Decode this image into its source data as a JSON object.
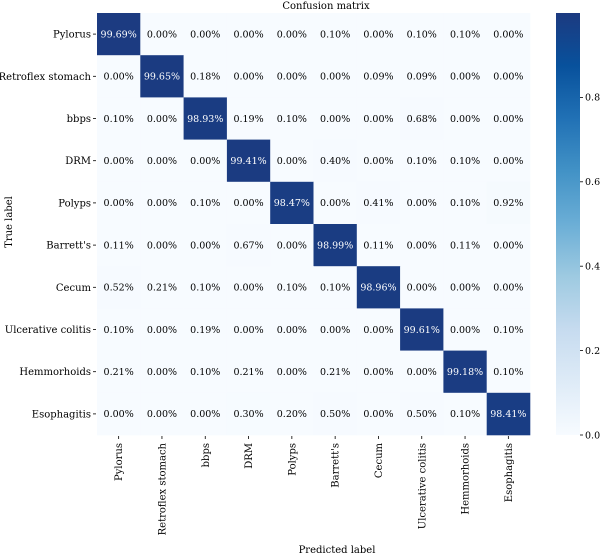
{
  "chart_data": {
    "type": "heatmap",
    "title": "Confusion matrix",
    "xlabel": "Predicted label",
    "ylabel": "True label",
    "row_labels": [
      "Pylorus",
      "Retroflex stomach",
      "bbps",
      "DRM",
      "Polyps",
      "Barrett's",
      "Cecum",
      "Ulcerative colitis",
      "Hemmorhoids",
      "Esophagitis"
    ],
    "col_labels": [
      "Pylorus",
      "Retroflex stomach",
      "bbps",
      "DRM",
      "Polyps",
      "Barrett's",
      "Cecum",
      "Ulcerative colitis",
      "Hemmorhoids",
      "Esophagitis"
    ],
    "values": [
      [
        99.69,
        0.0,
        0.0,
        0.0,
        0.0,
        0.1,
        0.0,
        0.1,
        0.1,
        0.0
      ],
      [
        0.0,
        99.65,
        0.18,
        0.0,
        0.0,
        0.0,
        0.09,
        0.09,
        0.0,
        0.0
      ],
      [
        0.1,
        0.0,
        98.93,
        0.19,
        0.1,
        0.0,
        0.0,
        0.68,
        0.0,
        0.0
      ],
      [
        0.0,
        0.0,
        0.0,
        99.41,
        0.0,
        0.4,
        0.0,
        0.1,
        0.1,
        0.0
      ],
      [
        0.0,
        0.0,
        0.1,
        0.0,
        98.47,
        0.0,
        0.41,
        0.0,
        0.1,
        0.92
      ],
      [
        0.11,
        0.0,
        0.0,
        0.67,
        0.0,
        98.99,
        0.11,
        0.0,
        0.11,
        0.0
      ],
      [
        0.52,
        0.21,
        0.1,
        0.0,
        0.1,
        0.1,
        98.96,
        0.0,
        0.0,
        0.0
      ],
      [
        0.1,
        0.0,
        0.19,
        0.0,
        0.0,
        0.0,
        0.0,
        99.61,
        0.0,
        0.1
      ],
      [
        0.21,
        0.0,
        0.1,
        0.21,
        0.0,
        0.21,
        0.0,
        0.0,
        99.18,
        0.1
      ],
      [
        0.0,
        0.0,
        0.0,
        0.3,
        0.2,
        0.5,
        0.0,
        0.5,
        0.1,
        98.41
      ]
    ],
    "value_suffix": "%",
    "colorbar": {
      "range": [
        0.0,
        1.0
      ],
      "ticks": [
        "0.0",
        "0.2",
        "0.4",
        "0.6",
        "0.8"
      ],
      "colormap": "Blues",
      "low_color": "#f7fbff",
      "high_color": "#1c3a80"
    }
  }
}
